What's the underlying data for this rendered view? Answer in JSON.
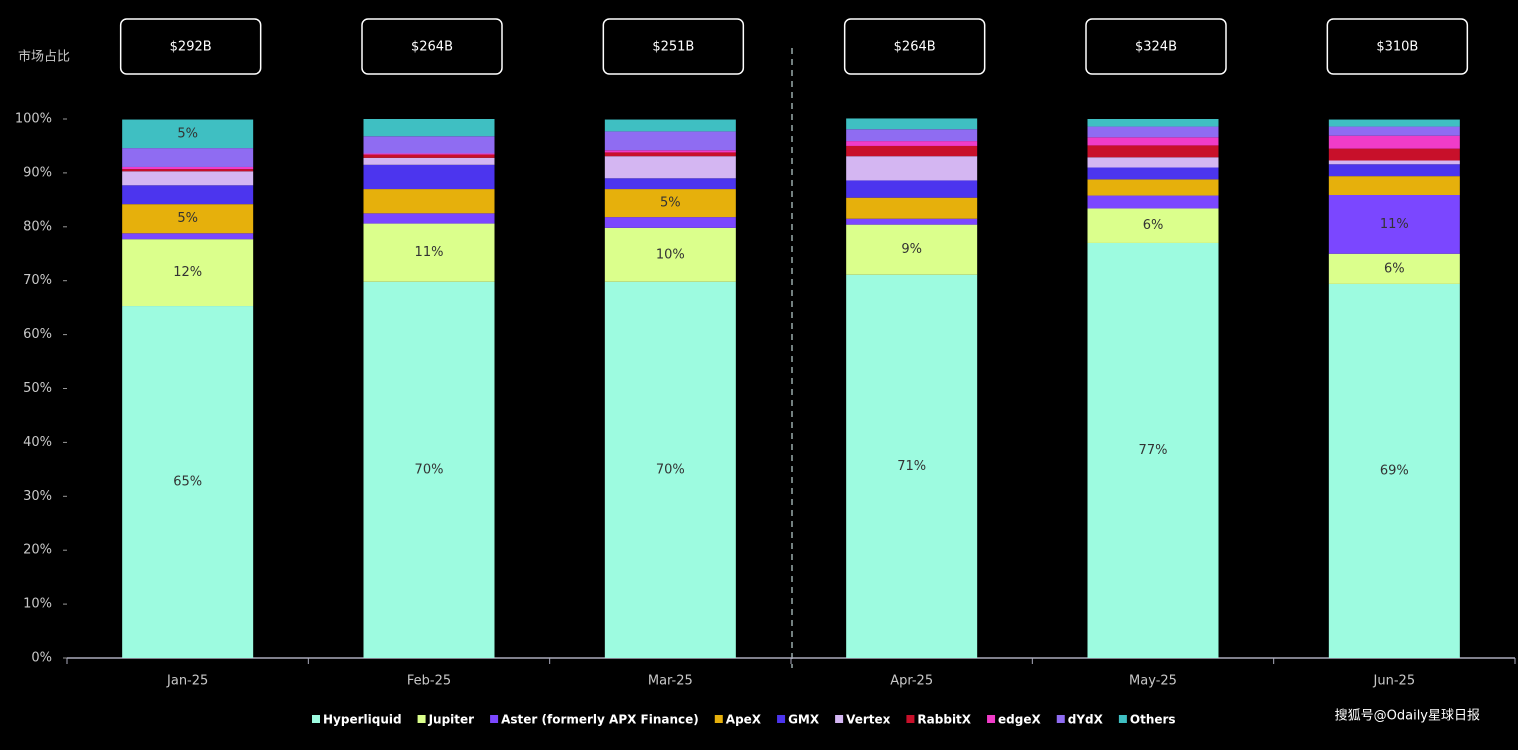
{
  "chart_data": {
    "type": "stacked_bar",
    "y_axis_label": "市场占比",
    "categories": [
      "Jan-25",
      "Feb-25",
      "Mar-25",
      "Apr-25",
      "May-25",
      "Jun-25"
    ],
    "annotations": [
      "$292B",
      "$264B",
      "$251B",
      "$264B",
      "$324B",
      "$310B"
    ],
    "ylim": [
      0,
      100
    ],
    "yticks": [
      {
        "value": 0,
        "label": "0%"
      },
      {
        "value": 10,
        "label": "10%"
      },
      {
        "value": 20,
        "label": "20%"
      },
      {
        "value": 30,
        "label": "30%"
      },
      {
        "value": 40,
        "label": "40%"
      },
      {
        "value": 50,
        "label": "50%"
      },
      {
        "value": 60,
        "label": "60%"
      },
      {
        "value": 70,
        "label": "70%"
      },
      {
        "value": 80,
        "label": "80%"
      },
      {
        "value": 90,
        "label": "90%"
      },
      {
        "value": 100,
        "label": "100%"
      }
    ],
    "series": [
      {
        "name": "Hyperliquid",
        "color": "#9dfbe0",
        "values": [
          65.3,
          69.8,
          69.8,
          71.1,
          77.0,
          69.4
        ],
        "value_labels": [
          "65%",
          "70%",
          "70%",
          "71%",
          "77%",
          "69%"
        ]
      },
      {
        "name": "Jupiter",
        "color": "#dbff8c",
        "values": [
          12.4,
          10.8,
          10.0,
          9.3,
          6.4,
          5.6
        ],
        "value_labels": [
          "12%",
          "11%",
          "10%",
          "9%",
          "6%",
          "6%"
        ]
      },
      {
        "name": "Aster (formerly APX Finance)",
        "color": "#7b47ff",
        "values": [
          1.1,
          1.9,
          2.0,
          1.1,
          2.4,
          10.9
        ],
        "value_labels": [
          null,
          null,
          null,
          null,
          null,
          "11%"
        ]
      },
      {
        "name": "ApeX",
        "color": "#e6b00c",
        "values": [
          5.4,
          4.5,
          5.2,
          3.9,
          3.0,
          3.5
        ],
        "value_labels": [
          "5%",
          null,
          "5%",
          null,
          null,
          null
        ]
      },
      {
        "name": "GMX",
        "color": "#4c35ee",
        "values": [
          3.5,
          4.5,
          2.0,
          3.2,
          2.2,
          2.2
        ]
      },
      {
        "name": "Vertex",
        "color": "#d4b6f2",
        "values": [
          2.6,
          1.3,
          4.1,
          4.5,
          1.9,
          0.7
        ]
      },
      {
        "name": "RabbitX",
        "color": "#c8102a",
        "values": [
          0.4,
          0.6,
          0.7,
          1.9,
          2.2,
          2.2
        ]
      },
      {
        "name": "edgeX",
        "color": "#f03cc8",
        "values": [
          0.4,
          0.2,
          0.4,
          0.9,
          1.5,
          2.4
        ]
      },
      {
        "name": "dYdX",
        "color": "#8f6cf2",
        "values": [
          3.5,
          3.2,
          3.5,
          2.2,
          2.0,
          1.7
        ]
      },
      {
        "name": "Others",
        "color": "#3fbfc2",
        "values": [
          5.3,
          3.2,
          2.2,
          2.0,
          1.4,
          1.3
        ],
        "value_labels": [
          "5%",
          null,
          null,
          null,
          null,
          null
        ]
      }
    ]
  },
  "watermark": "搜狐号@Odaily星球日报"
}
